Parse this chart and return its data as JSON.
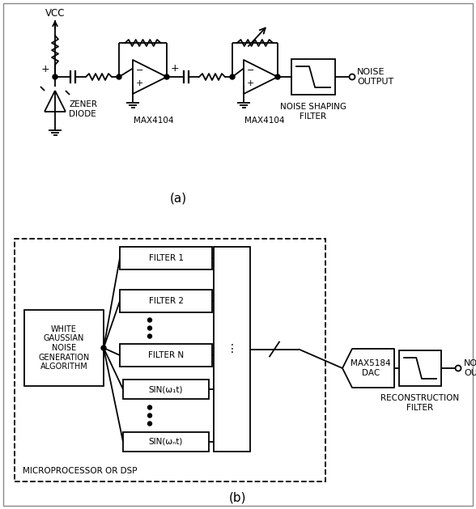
{
  "fig_width": 5.88,
  "fig_height": 6.29,
  "dpi": 100,
  "bg_color": "#ffffff",
  "line_color": "#000000",
  "label_a": "(a)",
  "label_b": "(b)",
  "vcc_label": "VCC",
  "zener_label": "ZENER\nDIODE",
  "max4104_1_label": "MAX4104",
  "max4104_2_label": "MAX4104",
  "noise_shaping_label": "NOISE SHAPING\nFILTER",
  "noise_output_a_label": "NOISE\nOUTPUT",
  "white_gaussian_label": "WHITE\nGAUSSIAN\nNOISE\nGENERATION\nALGORITHM",
  "filter1_label": "FILTER 1",
  "filter2_label": "FILTER 2",
  "filterN_label": "FILTER N",
  "sin1_label": "SIN(ω₁t)",
  "sinN_label": "SIN(ωₙt)",
  "max5184_label": "MAX5184\nDAC",
  "reconstruction_label": "RECONSTRUCTION\nFILTER",
  "noise_output_b_label": "NOISE\nOUTPUT",
  "microprocessor_label": "MICROPROCESSOR OR DSP",
  "border_color": "#555555"
}
